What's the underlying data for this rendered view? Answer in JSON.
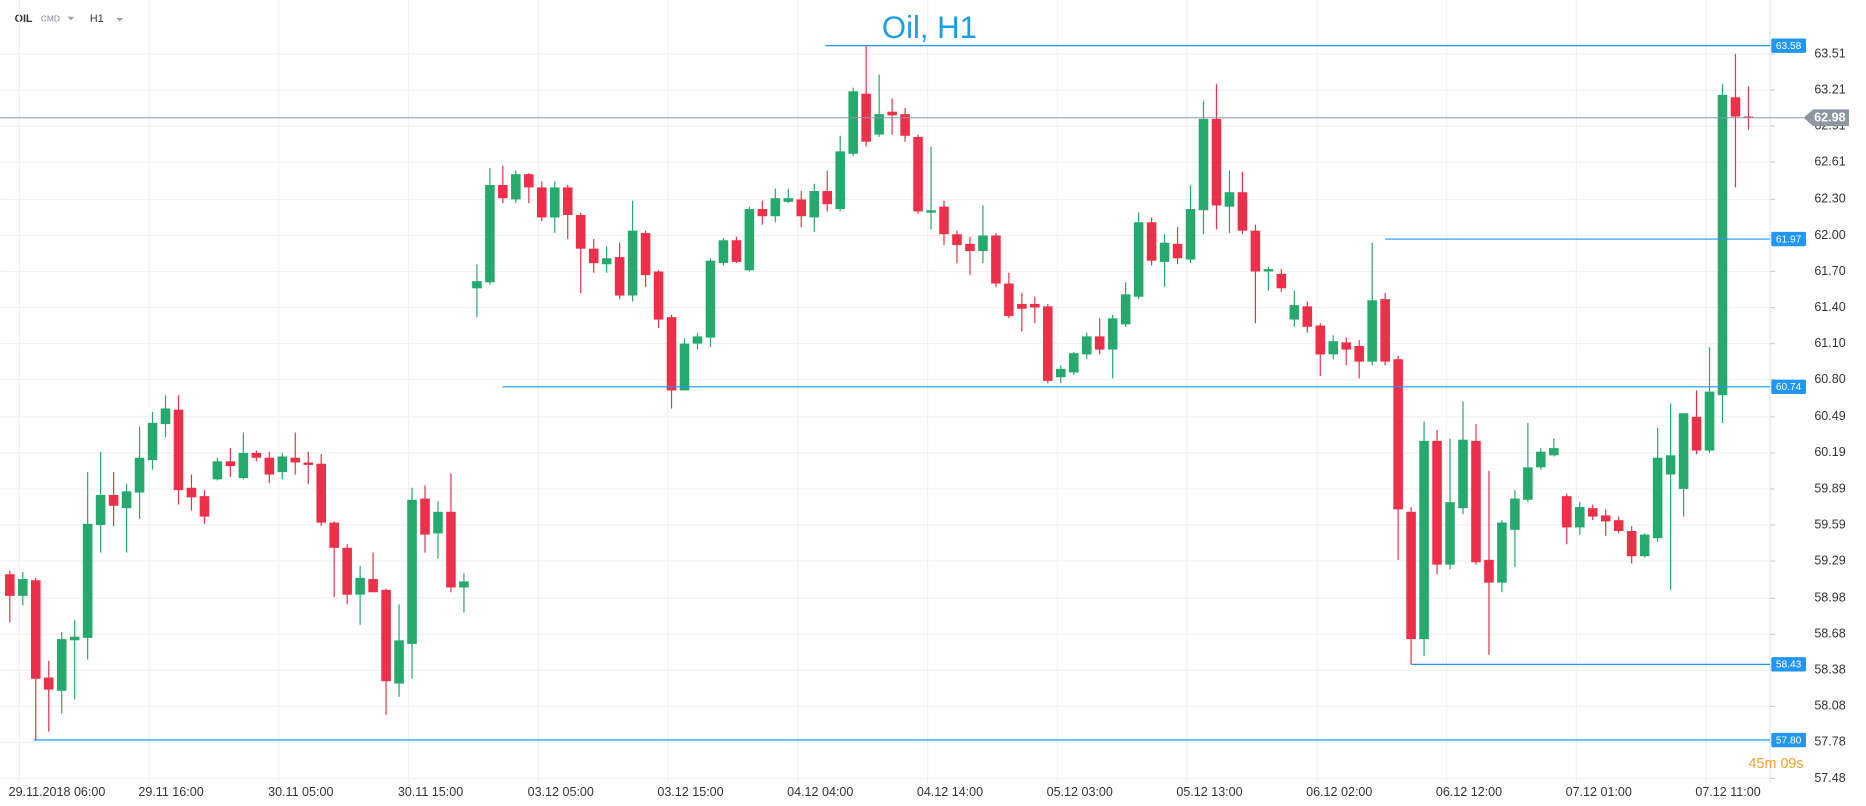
{
  "header": {
    "symbol": "OIL",
    "market": "CMD",
    "timeframe": "H1"
  },
  "chart_data": {
    "type": "candlestick",
    "title": "Oil, H1",
    "categories": [
      "29.11.2018  06:00",
      null,
      null,
      null,
      null,
      null,
      null,
      null,
      null,
      null,
      "29.11  16:00",
      null,
      null,
      null,
      null,
      null,
      null,
      null,
      null,
      null,
      "30.11  05:00",
      null,
      null,
      null,
      null,
      null,
      null,
      null,
      null,
      null,
      "30.11  15:00",
      null,
      null,
      null,
      null,
      null,
      null,
      null,
      null,
      null,
      "03.12  05:00",
      null,
      null,
      null,
      null,
      null,
      null,
      null,
      null,
      null,
      "03.12  15:00",
      null,
      null,
      null,
      null,
      null,
      null,
      null,
      null,
      null,
      "04.12  04:00",
      null,
      null,
      null,
      null,
      null,
      null,
      null,
      null,
      null,
      "04.12  14:00",
      null,
      null,
      null,
      null,
      null,
      null,
      null,
      null,
      null,
      "05.12  03:00",
      null,
      null,
      null,
      null,
      null,
      null,
      null,
      null,
      null,
      "05.12  13:00",
      null,
      null,
      null,
      null,
      null,
      null,
      null,
      null,
      null,
      "06.12  02:00",
      null,
      null,
      null,
      null,
      null,
      null,
      null,
      null,
      null,
      "06.12  12:00",
      null,
      null,
      null,
      null,
      null,
      null,
      null,
      null,
      null,
      "07.12  01:00",
      null,
      null,
      null,
      null,
      null,
      null,
      null,
      null,
      null,
      "07.12  11:00",
      null,
      null,
      null,
      null
    ],
    "open": [
      59.18,
      59.0,
      59.13,
      58.32,
      58.21,
      58.63,
      58.65,
      59.59,
      59.84,
      59.73,
      59.86,
      60.13,
      60.43,
      60.55,
      59.9,
      59.83,
      59.97,
      60.12,
      59.98,
      60.19,
      60.15,
      60.03,
      60.15,
      60.11,
      60.1,
      59.61,
      59.4,
      59.01,
      59.14,
      59.05,
      58.27,
      58.6,
      59.81,
      59.52,
      59.7,
      59.07,
      61.56,
      61.61,
      62.42,
      62.3,
      62.51,
      62.4,
      62.15,
      62.4,
      62.17,
      61.89,
      61.76,
      61.82,
      61.5,
      62.02,
      61.7,
      61.32,
      60.71,
      61.1,
      61.15,
      61.77,
      61.96,
      61.71,
      62.22,
      62.16,
      62.28,
      62.3,
      62.15,
      62.37,
      62.22,
      62.68,
      63.18,
      62.84,
      63.03,
      63.01,
      62.82,
      62.19,
      62.24,
      62.01,
      61.93,
      61.87,
      62.0,
      61.6,
      61.43,
      61.43,
      61.41,
      60.82,
      60.86,
      61.01,
      61.16,
      61.05,
      61.26,
      61.49,
      62.11,
      61.78,
      61.93,
      61.8,
      62.21,
      62.97,
      62.24,
      62.36,
      62.04,
      61.7,
      61.68,
      61.3,
      61.41,
      61.25,
      61.01,
      61.11,
      61.08,
      60.95,
      61.47,
      60.97,
      59.7,
      58.64,
      60.29,
      59.26,
      59.73,
      60.29,
      59.3,
      59.11,
      59.55,
      59.8,
      60.07,
      60.17,
      59.83,
      59.57,
      59.73,
      59.67,
      59.63,
      59.54,
      59.33,
      59.48,
      60.01,
      59.89,
      60.49,
      60.21,
      60.67,
      63.15,
      62.99
    ],
    "high": [
      59.21,
      59.2,
      59.15,
      58.46,
      58.7,
      58.8,
      60.03,
      60.2,
      60.03,
      59.93,
      60.41,
      60.53,
      60.67,
      60.67,
      60.01,
      59.88,
      60.15,
      60.23,
      60.36,
      60.21,
      60.2,
      60.19,
      60.36,
      60.2,
      60.18,
      59.62,
      59.43,
      59.25,
      59.36,
      59.06,
      58.93,
      59.9,
      59.92,
      59.79,
      60.02,
      59.19,
      61.76,
      62.56,
      62.58,
      62.54,
      62.52,
      62.45,
      62.45,
      62.42,
      62.19,
      61.97,
      61.91,
      61.94,
      62.29,
      62.04,
      61.71,
      61.34,
      61.14,
      61.19,
      61.81,
      61.98,
      61.99,
      62.24,
      62.29,
      62.39,
      62.39,
      62.37,
      62.43,
      62.54,
      62.83,
      63.23,
      63.58,
      63.34,
      63.14,
      63.06,
      62.84,
      62.74,
      62.29,
      62.04,
      61.99,
      62.25,
      62.02,
      61.69,
      61.52,
      61.49,
      61.43,
      60.92,
      61.03,
      61.19,
      61.31,
      61.34,
      61.61,
      62.19,
      62.15,
      62.01,
      62.07,
      62.42,
      63.12,
      63.26,
      62.54,
      62.53,
      62.09,
      61.74,
      61.72,
      61.54,
      61.45,
      61.27,
      61.17,
      61.15,
      61.13,
      61.94,
      61.52,
      61.0,
      59.74,
      60.45,
      60.38,
      60.31,
      60.62,
      60.43,
      60.04,
      59.63,
      59.88,
      60.44,
      60.23,
      60.31,
      59.85,
      59.78,
      59.76,
      59.72,
      59.66,
      59.58,
      59.52,
      60.4,
      60.6,
      60.52,
      60.71,
      61.07,
      63.26,
      63.51,
      63.24
    ],
    "low": [
      58.78,
      58.92,
      57.8,
      57.87,
      58.02,
      58.14,
      58.47,
      59.36,
      59.58,
      59.36,
      59.64,
      60.05,
      60.32,
      59.76,
      59.71,
      59.6,
      59.96,
      59.99,
      59.97,
      60.12,
      59.94,
      59.97,
      60.01,
      59.93,
      59.58,
      58.99,
      58.93,
      58.76,
      59.03,
      58.01,
      58.16,
      58.31,
      59.36,
      59.31,
      59.03,
      58.86,
      61.32,
      61.59,
      62.27,
      62.27,
      62.27,
      62.12,
      62.02,
      61.97,
      61.52,
      61.69,
      61.69,
      61.47,
      61.45,
      61.57,
      61.23,
      60.56,
      60.72,
      61.05,
      61.07,
      61.75,
      61.77,
      61.7,
      62.09,
      62.11,
      62.27,
      62.07,
      62.03,
      62.2,
      62.2,
      62.66,
      62.74,
      62.82,
      62.84,
      62.78,
      62.18,
      62.05,
      61.92,
      61.77,
      61.67,
      61.77,
      61.57,
      61.31,
      61.2,
      61.27,
      60.77,
      60.77,
      60.84,
      60.97,
      61.01,
      60.81,
      61.24,
      61.47,
      61.75,
      61.57,
      61.76,
      61.77,
      62.01,
      62.05,
      62.02,
      62.01,
      61.27,
      61.54,
      61.53,
      61.24,
      61.19,
      60.83,
      60.97,
      60.92,
      60.81,
      60.92,
      60.92,
      59.3,
      58.43,
      58.5,
      59.18,
      59.22,
      59.68,
      59.26,
      58.51,
      59.03,
      59.24,
      59.78,
      60.05,
      60.16,
      59.43,
      59.51,
      59.63,
      59.5,
      59.52,
      59.27,
      59.32,
      59.45,
      59.05,
      59.66,
      60.18,
      60.19,
      60.44,
      62.4,
      62.88
    ],
    "close": [
      59.0,
      59.14,
      58.31,
      58.22,
      58.64,
      58.66,
      59.6,
      59.84,
      59.75,
      59.87,
      60.15,
      60.44,
      60.56,
      59.88,
      59.82,
      59.66,
      60.12,
      60.08,
      60.19,
      60.15,
      60.01,
      60.16,
      60.11,
      60.09,
      59.61,
      59.4,
      59.01,
      59.15,
      59.03,
      58.29,
      58.63,
      59.8,
      59.51,
      59.7,
      59.07,
      59.12,
      61.62,
      62.42,
      62.31,
      62.51,
      62.4,
      62.15,
      62.4,
      62.17,
      61.89,
      61.77,
      61.81,
      61.5,
      62.04,
      61.67,
      61.3,
      60.71,
      61.1,
      61.16,
      61.79,
      61.96,
      61.78,
      62.22,
      62.16,
      62.31,
      62.31,
      62.16,
      62.37,
      62.26,
      62.7,
      63.2,
      62.78,
      63.01,
      63.0,
      62.83,
      62.2,
      62.21,
      62.01,
      61.92,
      61.87,
      62.0,
      61.6,
      61.33,
      61.39,
      61.4,
      60.79,
      60.89,
      61.02,
      61.16,
      61.05,
      61.31,
      61.51,
      62.11,
      61.79,
      61.94,
      61.81,
      62.22,
      62.97,
      62.25,
      62.36,
      62.04,
      61.7,
      61.72,
      61.56,
      61.42,
      61.24,
      61.01,
      61.12,
      61.05,
      60.95,
      61.46,
      60.95,
      59.72,
      58.64,
      60.29,
      59.26,
      59.78,
      60.3,
      59.28,
      59.11,
      59.61,
      59.81,
      60.07,
      60.2,
      60.23,
      59.57,
      59.74,
      59.66,
      59.62,
      59.54,
      59.33,
      59.51,
      60.15,
      60.17,
      60.52,
      60.21,
      60.7,
      63.17,
      62.99,
      62.98
    ],
    "up_color": "#26a96c",
    "down_color": "#ec3049",
    "ylim": [
      57.44,
      63.96
    ],
    "yticks": [
      63.51,
      63.21,
      62.91,
      62.61,
      {
        "value": 62.3,
        "label": "62.30"
      },
      {
        "value": 62.0,
        "label": "62.00"
      },
      {
        "value": 61.7,
        "label": "61.70"
      },
      {
        "value": 61.4,
        "label": "61.40"
      },
      {
        "value": 61.1,
        "label": "61.10"
      },
      {
        "value": 60.8,
        "label": "60.80"
      },
      60.49,
      60.19,
      59.89,
      59.59,
      59.29,
      58.98,
      58.68,
      58.38,
      58.08,
      57.78,
      57.48
    ],
    "grid": true,
    "levels": [
      63.58,
      61.97,
      60.74,
      58.43,
      {
        "value": 57.8,
        "label": "57.80"
      }
    ],
    "level_color": "#2196f3",
    "current_price": 62.98,
    "current_color": "#8c97a3",
    "countdown": "45m 09s"
  }
}
